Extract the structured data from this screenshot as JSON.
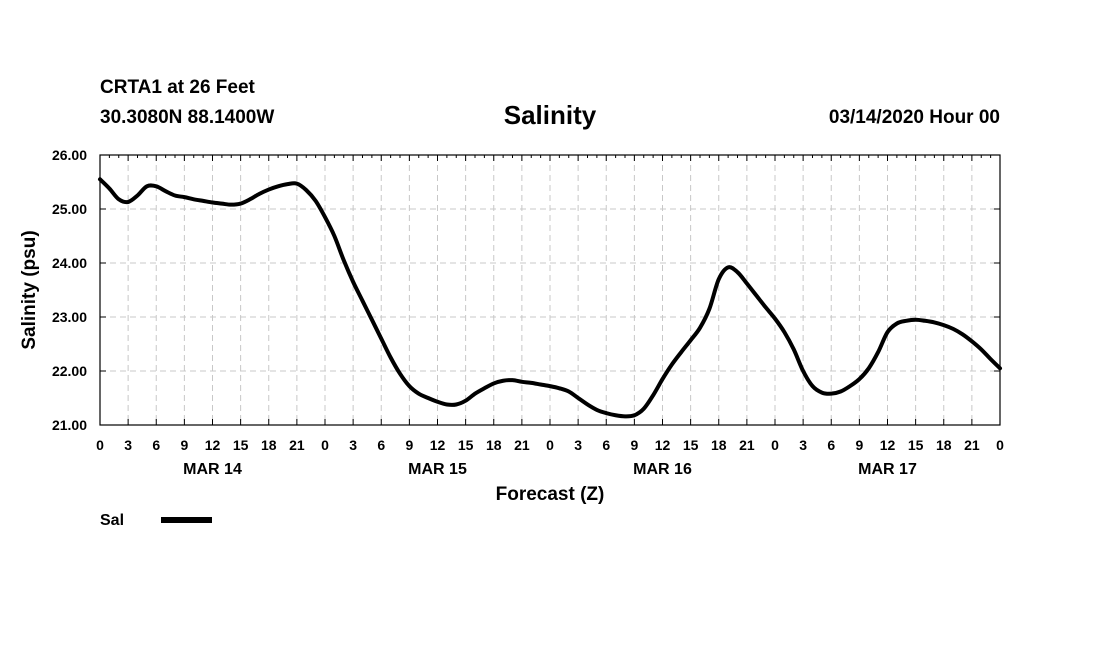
{
  "header": {
    "station": "CRTA1 at 26 Feet",
    "coords": "30.3080N 88.1400W",
    "title": "Salinity",
    "runtime": "03/14/2020 Hour 00"
  },
  "chart_data": {
    "type": "line",
    "title": "Salinity",
    "xlabel": "Forecast (Z)",
    "ylabel": "Salinity (psu)",
    "ylim": [
      21,
      26
    ],
    "y_ticks": [
      "21.00",
      "22.00",
      "23.00",
      "24.00",
      "25.00",
      "26.00"
    ],
    "x_tick_labels": [
      "0",
      "3",
      "6",
      "9",
      "12",
      "15",
      "18",
      "21",
      "0",
      "3",
      "6",
      "9",
      "12",
      "15",
      "18",
      "21",
      "0",
      "3",
      "6",
      "9",
      "12",
      "15",
      "18",
      "21",
      "0",
      "3",
      "6",
      "9",
      "12",
      "15",
      "18",
      "21",
      "0"
    ],
    "day_labels": [
      {
        "label": "MAR 14",
        "hour": 12
      },
      {
        "label": "MAR 15",
        "hour": 36
      },
      {
        "label": "MAR 16",
        "hour": 60
      },
      {
        "label": "MAR 17",
        "hour": 84
      }
    ],
    "grid": true,
    "legend": {
      "placement": "bottom-left",
      "entries": [
        {
          "label": "Sal",
          "color": "#000000"
        }
      ]
    },
    "series": [
      {
        "name": "Sal",
        "color": "#000000",
        "x_hours": [
          0,
          1,
          2,
          3,
          4,
          5,
          6,
          7,
          8,
          9,
          10,
          11,
          12,
          13,
          14,
          15,
          16,
          17,
          18,
          19,
          20,
          21,
          22,
          23,
          24,
          25,
          26,
          27,
          28,
          29,
          30,
          31,
          32,
          33,
          34,
          35,
          36,
          37,
          38,
          39,
          40,
          41,
          42,
          43,
          44,
          45,
          46,
          47,
          48,
          49,
          50,
          51,
          52,
          53,
          54,
          55,
          56,
          57,
          58,
          59,
          60,
          61,
          62,
          63,
          64,
          65,
          66,
          67,
          68,
          69,
          70,
          71,
          72,
          73,
          74,
          75,
          76,
          77,
          78,
          79,
          80,
          81,
          82,
          83,
          84,
          85,
          86,
          87,
          88,
          89,
          90,
          91,
          92,
          93,
          94,
          95,
          96
        ],
        "values": [
          25.55,
          25.38,
          25.18,
          25.13,
          25.25,
          25.42,
          25.42,
          25.33,
          25.25,
          25.22,
          25.18,
          25.15,
          25.12,
          25.1,
          25.08,
          25.1,
          25.18,
          25.28,
          25.36,
          25.42,
          25.46,
          25.47,
          25.35,
          25.15,
          24.85,
          24.5,
          24.05,
          23.65,
          23.3,
          22.95,
          22.6,
          22.25,
          21.95,
          21.72,
          21.58,
          21.5,
          21.43,
          21.38,
          21.38,
          21.45,
          21.58,
          21.68,
          21.77,
          21.82,
          21.83,
          21.8,
          21.78,
          21.75,
          21.72,
          21.68,
          21.62,
          21.5,
          21.38,
          21.28,
          21.22,
          21.18,
          21.16,
          21.18,
          21.3,
          21.55,
          21.85,
          22.12,
          22.35,
          22.57,
          22.8,
          23.15,
          23.7,
          23.92,
          23.83,
          23.62,
          23.4,
          23.18,
          22.97,
          22.72,
          22.4,
          22.0,
          21.72,
          21.6,
          21.58,
          21.62,
          21.72,
          21.85,
          22.05,
          22.35,
          22.72,
          22.88,
          22.93,
          22.95,
          22.93,
          22.9,
          22.85,
          22.78,
          22.68,
          22.55,
          22.4,
          22.22,
          22.05
        ]
      }
    ]
  }
}
